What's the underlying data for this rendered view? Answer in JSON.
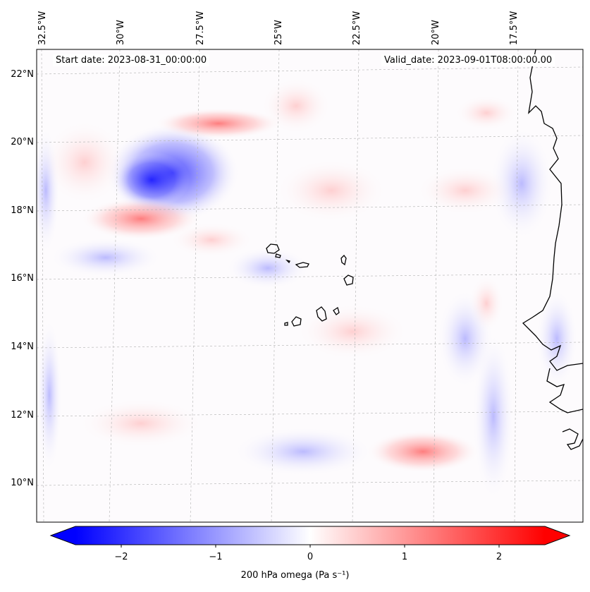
{
  "header": {
    "start_date": "Start date: 2023-08-31_00:00:00",
    "valid_date": "Valid_date: 2023-09-01T08:00:00.00"
  },
  "map": {
    "longitude_labels": [
      "32.5°W",
      "30°W",
      "27.5°W",
      "25°W",
      "22.5°W",
      "20°W",
      "17.5°W"
    ],
    "latitude_labels": [
      "22°N",
      "20°N",
      "18°N",
      "16°N",
      "14°N",
      "12°N",
      "10°N"
    ],
    "extent": {
      "lon_min": -33.0,
      "lon_max": -16.4,
      "lat_min": 8.9,
      "lat_max": 22.8
    },
    "gridlines": true,
    "features": [
      "Cabo Verde islands coastline",
      "West African coastline"
    ],
    "field": "200 hPa vertical velocity (omega), diverging blue-white-red shading"
  },
  "colorbar": {
    "label": "200 hPa omega (Pa s⁻¹)",
    "ticks": [
      "−2",
      "−1",
      "0",
      "1",
      "2"
    ],
    "range": [
      -2.75,
      2.75
    ],
    "colormap": "bwr",
    "extend": "both",
    "colors": {
      "negative": "#0000ff",
      "zero": "#ffffff",
      "positive": "#ff0000"
    }
  }
}
